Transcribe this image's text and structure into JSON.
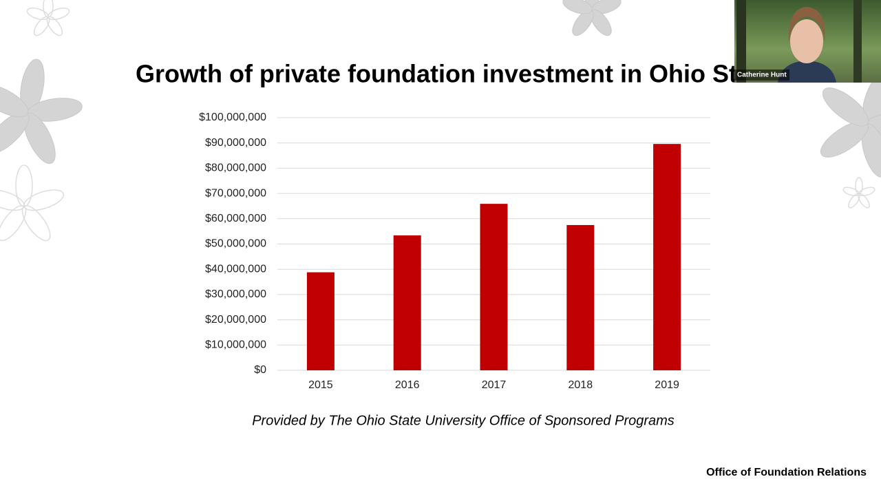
{
  "chart_data": {
    "type": "bar",
    "title": "Growth of private foundation investment in Ohio State",
    "caption": "Provided by The Ohio State University Office of Sponsored Programs",
    "categories": [
      "2015",
      "2016",
      "2017",
      "2018",
      "2019"
    ],
    "values": [
      38800000,
      53400000,
      65900000,
      57500000,
      89600000
    ],
    "color": "#c00000",
    "ylim": [
      0,
      100000000
    ],
    "yticks": [
      {
        "value": 0,
        "label": "$0"
      },
      {
        "value": 10000000,
        "label": "$10,000,000"
      },
      {
        "value": 20000000,
        "label": "$20,000,000"
      },
      {
        "value": 30000000,
        "label": "$30,000,000"
      },
      {
        "value": 40000000,
        "label": "$40,000,000"
      },
      {
        "value": 50000000,
        "label": "$50,000,000"
      },
      {
        "value": 60000000,
        "label": "$60,000,000"
      },
      {
        "value": 70000000,
        "label": "$70,000,000"
      },
      {
        "value": 80000000,
        "label": "$80,000,000"
      },
      {
        "value": 90000000,
        "label": "$90,000,000"
      },
      {
        "value": 100000000,
        "label": "$100,000,000"
      }
    ],
    "grid": true
  },
  "slide": {
    "footer": "Office of Foundation Relations"
  },
  "video": {
    "name": "Catherine Hunt"
  }
}
